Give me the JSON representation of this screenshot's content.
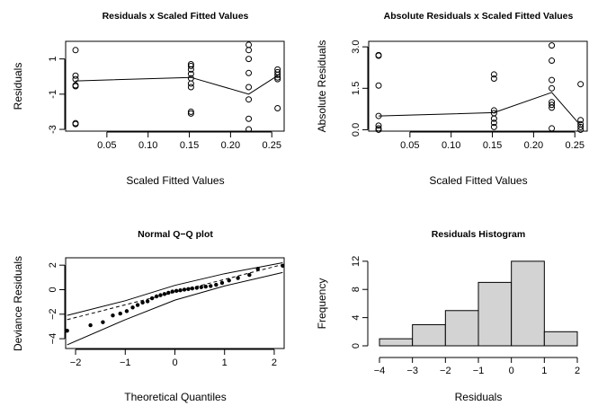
{
  "chart_data": [
    {
      "type": "scatter",
      "title": "Residuals x Scaled Fitted Values",
      "xlabel": "Scaled Fitted Values",
      "ylabel": "Residuals",
      "xlim": [
        0.0,
        0.265
      ],
      "ylim": [
        -3.1,
        2.0
      ],
      "xticks": [
        0.05,
        0.1,
        0.15,
        0.2,
        0.25
      ],
      "xtick_labels": [
        "0.05",
        "0.10",
        "0.15",
        "0.20",
        "0.25"
      ],
      "yticks": [
        -3,
        -1,
        1
      ],
      "ytick_labels": [
        "-3",
        "-1",
        "1"
      ],
      "points": [
        [
          0.012,
          1.5
        ],
        [
          0.012,
          0.05
        ],
        [
          0.012,
          -0.15
        ],
        [
          0.012,
          -0.5
        ],
        [
          0.012,
          -0.55
        ],
        [
          0.012,
          -2.65
        ],
        [
          0.012,
          -2.7
        ],
        [
          0.152,
          0.7
        ],
        [
          0.152,
          0.6
        ],
        [
          0.152,
          0.4
        ],
        [
          0.152,
          0.15
        ],
        [
          0.152,
          -0.1
        ],
        [
          0.152,
          -0.4
        ],
        [
          0.152,
          -0.6
        ],
        [
          0.152,
          -2.0
        ],
        [
          0.152,
          -2.1
        ],
        [
          0.222,
          1.8
        ],
        [
          0.222,
          1.5
        ],
        [
          0.222,
          1.0
        ],
        [
          0.222,
          0.2
        ],
        [
          0.222,
          -0.6
        ],
        [
          0.222,
          -1.3
        ],
        [
          0.222,
          -2.4
        ],
        [
          0.222,
          -3.0
        ],
        [
          0.257,
          0.4
        ],
        [
          0.257,
          0.25
        ],
        [
          0.257,
          0.1
        ],
        [
          0.257,
          -0.05
        ],
        [
          0.257,
          -0.15
        ],
        [
          0.257,
          -1.8
        ]
      ],
      "trend_line": [
        [
          0.012,
          -0.25
        ],
        [
          0.152,
          -0.05
        ],
        [
          0.222,
          -1.0
        ],
        [
          0.257,
          0.05
        ]
      ]
    },
    {
      "type": "scatter",
      "title": "Absolute Residuals x Scaled Fitted Values",
      "xlabel": "Scaled Fitted Values",
      "ylabel": "Absolute Residuals",
      "xlim": [
        0.0,
        0.265
      ],
      "ylim": [
        -0.05,
        3.2
      ],
      "xticks": [
        0.05,
        0.1,
        0.15,
        0.2,
        0.25
      ],
      "xtick_labels": [
        "0.05",
        "0.10",
        "0.15",
        "0.20",
        "0.25"
      ],
      "yticks": [
        0.0,
        1.5,
        3.0
      ],
      "ytick_labels": [
        "0.0",
        "1.5",
        "3.0"
      ],
      "points": [
        [
          0.012,
          2.7
        ],
        [
          0.012,
          2.68
        ],
        [
          0.012,
          1.6
        ],
        [
          0.012,
          0.5
        ],
        [
          0.012,
          0.15
        ],
        [
          0.012,
          0.05
        ],
        [
          0.012,
          0.0
        ],
        [
          0.152,
          2.0
        ],
        [
          0.152,
          1.85
        ],
        [
          0.152,
          0.7
        ],
        [
          0.152,
          0.6
        ],
        [
          0.152,
          0.4
        ],
        [
          0.152,
          0.25
        ],
        [
          0.152,
          0.1
        ],
        [
          0.222,
          3.05
        ],
        [
          0.222,
          2.5
        ],
        [
          0.222,
          1.8
        ],
        [
          0.222,
          1.5
        ],
        [
          0.222,
          1.0
        ],
        [
          0.222,
          0.9
        ],
        [
          0.222,
          0.8
        ],
        [
          0.222,
          0.05
        ],
        [
          0.257,
          1.65
        ],
        [
          0.257,
          0.35
        ],
        [
          0.257,
          0.2
        ],
        [
          0.257,
          0.1
        ],
        [
          0.257,
          0.0
        ]
      ],
      "trend_line": [
        [
          0.012,
          0.5
        ],
        [
          0.152,
          0.62
        ],
        [
          0.222,
          1.35
        ],
        [
          0.257,
          0.15
        ]
      ]
    },
    {
      "type": "scatter",
      "title": "Normal Q−Q plot",
      "xlabel": "Theoretical Quantiles",
      "ylabel": "Deviance Residuals",
      "xlim": [
        -2.2,
        2.2
      ],
      "ylim": [
        -4.8,
        2.6
      ],
      "xticks": [
        -2,
        -1,
        0,
        1,
        2
      ],
      "xtick_labels": [
        "−2",
        "−1",
        "0",
        "1",
        "2"
      ],
      "yticks": [
        -4,
        -2,
        0,
        2
      ],
      "ytick_labels": [
        "−4",
        "−2",
        "0",
        "2"
      ],
      "points": [
        [
          -2.17,
          -3.35
        ],
        [
          -1.7,
          -2.9
        ],
        [
          -1.45,
          -2.65
        ],
        [
          -1.25,
          -2.1
        ],
        [
          -1.1,
          -1.95
        ],
        [
          -0.97,
          -1.75
        ],
        [
          -0.85,
          -1.45
        ],
        [
          -0.75,
          -1.25
        ],
        [
          -0.65,
          -1.05
        ],
        [
          -0.55,
          -0.95
        ],
        [
          -0.46,
          -0.7
        ],
        [
          -0.37,
          -0.55
        ],
        [
          -0.29,
          -0.45
        ],
        [
          -0.21,
          -0.35
        ],
        [
          -0.13,
          -0.25
        ],
        [
          -0.05,
          -0.15
        ],
        [
          0.03,
          -0.1
        ],
        [
          0.11,
          -0.05
        ],
        [
          0.19,
          0.0
        ],
        [
          0.27,
          0.05
        ],
        [
          0.35,
          0.1
        ],
        [
          0.44,
          0.15
        ],
        [
          0.53,
          0.2
        ],
        [
          0.62,
          0.25
        ],
        [
          0.72,
          0.3
        ],
        [
          0.83,
          0.4
        ],
        [
          0.95,
          0.55
        ],
        [
          1.09,
          0.75
        ],
        [
          1.27,
          0.95
        ],
        [
          1.5,
          1.2
        ],
        [
          1.67,
          1.7
        ],
        [
          2.17,
          1.95
        ]
      ],
      "reference_line": [
        [
          -2.17,
          -2.45
        ],
        [
          2.17,
          2.05
        ]
      ],
      "envelope_lower": [
        [
          -2.17,
          -4.5
        ],
        [
          -1.0,
          -2.45
        ],
        [
          0.0,
          -0.85
        ],
        [
          1.0,
          0.3
        ],
        [
          2.17,
          1.4
        ]
      ],
      "envelope_upper": [
        [
          -2.17,
          -2.1
        ],
        [
          -1.0,
          -0.9
        ],
        [
          0.0,
          0.35
        ],
        [
          1.0,
          1.3
        ],
        [
          2.17,
          2.2
        ]
      ]
    },
    {
      "type": "bar",
      "title": "Residuals Histogram",
      "xlabel": "Residuals",
      "ylabel": "Frequency",
      "categories": [
        "-4 to -3",
        "-3 to -2",
        "-2 to -1",
        "-1 to 0",
        "0 to 1",
        "1 to 2"
      ],
      "bin_edges": [
        -4,
        -3,
        -2,
        -1,
        0,
        1,
        2
      ],
      "values": [
        1,
        3,
        5,
        9,
        12,
        2
      ],
      "xlim": [
        -4,
        2
      ],
      "ylim": [
        0,
        13
      ],
      "xticks": [
        -4,
        -3,
        -2,
        -1,
        0,
        1,
        2
      ],
      "xtick_labels": [
        "−4",
        "−3",
        "−2",
        "−1",
        "0",
        "1",
        "2"
      ],
      "yticks": [
        0,
        4,
        8,
        12
      ],
      "ytick_labels": [
        "0",
        "4",
        "8",
        "12"
      ],
      "bar_color": "#d3d3d3"
    }
  ]
}
